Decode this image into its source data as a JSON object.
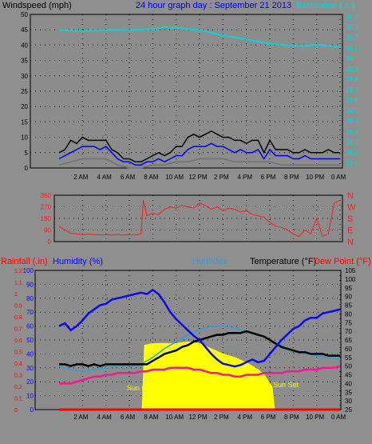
{
  "header": {
    "wind_label": "Windspeed (mph)",
    "title": "24 hour graph day : September 21 2013",
    "baro_label": "Barometer (.in)"
  },
  "mid_panel": {
    "compass_labels": [
      "N",
      "W",
      "S",
      "E",
      "N"
    ]
  },
  "lower_header": {
    "rain_label": "Rainfall (.in)",
    "humidity_label": "Humidity (%)",
    "humidex_label": "Humidex",
    "temperature_label": "Temperature (°F)",
    "dewpoint_label": "Dew Point (°F)"
  },
  "annotations": {
    "sun_rise": "Sun rise",
    "sun_set": "Sun Set"
  },
  "colors": {
    "background": "#8f8f8f",
    "plot_bg": "#8c8c8c",
    "wind_avg": "#0000ee",
    "wind_gust": "#000000",
    "wind_lull": "#707070",
    "barometer": "#00d8d8",
    "wind_dir": "#ff1a1a",
    "humidity": "#0a0aee",
    "humidex": "#2aa0d8",
    "temperature": "#000000",
    "dewpoint": "#ff1493",
    "rainfall": "#ff0000",
    "solar": "#ffff00"
  },
  "chart_data": [
    {
      "type": "line",
      "name_key": "wind_baro",
      "x_tick_labels": [
        "2 AM",
        "4 AM",
        "6 AM",
        "8 AM",
        "10 AM",
        "12 PM",
        "2 PM",
        "4 PM",
        "6 PM",
        "8 PM",
        "10 PM",
        "0 AM"
      ],
      "y_left_ticks": [
        0,
        5,
        10,
        15,
        20,
        25,
        30,
        35,
        40,
        45,
        50
      ],
      "y_left_range": [
        0,
        50
      ],
      "y_right_ticks": [
        "29.0",
        "29.1",
        "29.2",
        "29.3",
        "29.4",
        "29.5",
        "29.6",
        "29.7",
        "29.8",
        "29.9",
        "30",
        "30.1",
        "30.2",
        "30.3",
        "30.4"
      ],
      "y_right_range": [
        28.95,
        30.42
      ],
      "grid": true,
      "series": [
        {
          "key": "barometer",
          "axis": "right",
          "x": [
            0,
            2,
            4,
            6,
            8,
            9,
            10,
            12,
            14,
            16,
            17,
            18,
            19,
            20,
            21,
            22,
            23,
            24
          ],
          "values": [
            30.27,
            30.26,
            30.27,
            30.27,
            30.28,
            30.3,
            30.29,
            30.27,
            30.22,
            30.18,
            30.16,
            30.14,
            30.13,
            30.12,
            30.12,
            30.13,
            30.12,
            30.11
          ]
        },
        {
          "key": "wind_avg",
          "axis": "left",
          "x": [
            0,
            0.5,
            1,
            1.5,
            2,
            2.5,
            3,
            3.5,
            4,
            4.5,
            5,
            5.5,
            6,
            6.5,
            7,
            7.5,
            8,
            8.5,
            9,
            9.5,
            10,
            10.5,
            11,
            11.5,
            12,
            12.5,
            13,
            13.5,
            14,
            14.5,
            15,
            15.5,
            16,
            16.5,
            17,
            17.5,
            18,
            18.5,
            19,
            19.5,
            20,
            20.5,
            21,
            21.5,
            22,
            22.5,
            23,
            23.5,
            24
          ],
          "values": [
            3,
            4,
            5,
            6,
            7,
            7,
            7,
            6,
            7,
            5,
            3,
            2,
            2,
            1,
            1,
            2,
            2,
            3,
            2,
            3,
            4,
            4,
            6,
            7,
            7,
            7,
            8,
            7,
            7,
            6,
            5,
            6,
            5,
            5,
            6,
            3,
            6,
            4,
            4,
            4,
            3,
            3,
            4,
            3,
            3,
            3,
            3,
            3,
            3
          ]
        },
        {
          "key": "wind_gust",
          "axis": "left",
          "x": [
            0,
            0.5,
            1,
            1.5,
            2,
            2.5,
            3,
            3.5,
            4,
            4.5,
            5,
            5.5,
            6,
            6.5,
            7,
            7.5,
            8,
            8.5,
            9,
            9.5,
            10,
            10.5,
            11,
            11.5,
            12,
            12.5,
            13,
            13.5,
            14,
            14.5,
            15,
            15.5,
            16,
            16.5,
            17,
            17.5,
            18,
            18.5,
            19,
            19.5,
            20,
            20.5,
            21,
            21.5,
            22,
            22.5,
            23,
            23.5,
            24
          ],
          "values": [
            5,
            6,
            9,
            8,
            10,
            9,
            9,
            9,
            9,
            6,
            5,
            3,
            3,
            2,
            2,
            3,
            4,
            5,
            4,
            5,
            7,
            7,
            10,
            11,
            10,
            11,
            12,
            11,
            10,
            10,
            9,
            9,
            8,
            9,
            9,
            5,
            9,
            6,
            6,
            6,
            5,
            5,
            6,
            5,
            5,
            5,
            6,
            5,
            5
          ]
        },
        {
          "key": "wind_lull",
          "axis": "left",
          "x": [
            0,
            1,
            2,
            3,
            4,
            5,
            6,
            7,
            8,
            9,
            10,
            11,
            12,
            13,
            14,
            15,
            16,
            17,
            18,
            19,
            20,
            21,
            22,
            23,
            24
          ],
          "values": [
            1,
            2,
            3,
            3,
            3,
            1,
            0,
            0,
            1,
            1,
            2,
            2,
            3,
            3,
            3,
            2,
            2,
            2,
            2,
            1,
            1,
            1,
            1,
            1,
            1
          ]
        }
      ]
    },
    {
      "type": "line",
      "name_key": "wind_direction",
      "y_ticks": [
        0,
        90,
        180,
        270,
        360
      ],
      "y_range": [
        0,
        360
      ],
      "grid": true,
      "series": [
        {
          "key": "wind_dir",
          "x": [
            0,
            0.5,
            1,
            1.5,
            2,
            2.5,
            3,
            3.5,
            4,
            4.5,
            5,
            5.5,
            6,
            6.5,
            7,
            7.2,
            7.5,
            8,
            8.5,
            9,
            9.5,
            10,
            10.5,
            11,
            11.5,
            12,
            12.5,
            13,
            13.5,
            14,
            14.5,
            15,
            15.5,
            16,
            16.5,
            17,
            17.5,
            18,
            18.5,
            19,
            19.5,
            20,
            20.5,
            21,
            21.5,
            22,
            22.5,
            23,
            23.5,
            24
          ],
          "values": [
            120,
            90,
            65,
            60,
            55,
            58,
            55,
            52,
            55,
            50,
            55,
            50,
            55,
            50,
            60,
            320,
            200,
            220,
            210,
            250,
            270,
            260,
            280,
            270,
            260,
            300,
            280,
            250,
            270,
            240,
            260,
            250,
            230,
            240,
            210,
            200,
            190,
            150,
            120,
            110,
            90,
            60,
            40,
            90,
            60,
            180,
            40,
            60,
            300,
            320
          ]
        }
      ]
    },
    {
      "type": "line",
      "name_key": "temp_humidity",
      "y_rain_ticks": [
        0,
        0.1,
        0.2,
        0.3,
        0.4,
        0.5,
        0.6,
        0.7,
        0.8,
        0.9,
        1,
        1.1,
        1.2
      ],
      "y_rain_range": [
        0,
        1.2
      ],
      "y_humidity_ticks": [
        0,
        10,
        20,
        30,
        40,
        50,
        60,
        70,
        80,
        90,
        100
      ],
      "y_humidity_range": [
        0,
        100
      ],
      "y_temp_ticks": [
        25,
        30,
        35,
        40,
        45,
        50,
        55,
        60,
        65,
        70,
        75,
        80,
        85,
        90,
        95,
        100,
        105
      ],
      "y_temp_range": [
        25,
        105
      ],
      "grid": true,
      "series": [
        {
          "key": "solar",
          "kind": "area",
          "axis": "temp",
          "x": [
            7.1,
            7.3,
            8,
            9,
            10,
            11,
            12,
            13,
            14,
            15,
            16,
            17,
            17.5,
            18.2,
            18.4
          ],
          "values": [
            25,
            62,
            63,
            63,
            63,
            64,
            63,
            60,
            57,
            55,
            52,
            48,
            45,
            38,
            25
          ]
        },
        {
          "key": "humidity",
          "axis": "humidity",
          "x": [
            0,
            0.5,
            1,
            1.5,
            2,
            2.5,
            3,
            3.5,
            4,
            4.5,
            5,
            5.5,
            6,
            6.5,
            7,
            7.5,
            8,
            8.5,
            9,
            9.5,
            10,
            10.5,
            11,
            11.5,
            12,
            12.5,
            13,
            13.5,
            14,
            14.5,
            15,
            15.5,
            16,
            16.5,
            17,
            17.5,
            18,
            18.5,
            19,
            19.5,
            20,
            20.5,
            21,
            21.5,
            22,
            22.5,
            23,
            23.5,
            24
          ],
          "values": [
            60,
            62,
            57,
            60,
            64,
            69,
            72,
            75,
            76,
            79,
            80,
            81,
            82,
            83,
            84,
            83,
            86,
            83,
            77,
            70,
            65,
            61,
            57,
            53,
            50,
            45,
            40,
            36,
            33,
            32,
            31,
            32,
            34,
            36,
            34,
            35,
            40,
            45,
            50,
            54,
            58,
            60,
            64,
            66,
            66,
            69,
            70,
            71,
            72
          ]
        },
        {
          "key": "humidex",
          "axis": "temp",
          "x": [
            0,
            1,
            2,
            3,
            4,
            5,
            6,
            7,
            8,
            9,
            10,
            11,
            12,
            13,
            14,
            15,
            16,
            17,
            18,
            19,
            20,
            21,
            22,
            23,
            24
          ],
          "values": [
            50,
            48,
            47,
            48,
            49,
            50,
            50,
            51,
            55,
            60,
            64,
            68,
            71,
            73,
            73,
            72,
            70,
            68,
            65,
            62,
            59,
            57,
            56,
            55,
            54
          ]
        },
        {
          "key": "temperature",
          "axis": "temp",
          "x": [
            0,
            0.5,
            1,
            1.5,
            2,
            2.5,
            3,
            3.5,
            4,
            4.5,
            5,
            5.5,
            6,
            6.5,
            7,
            7.5,
            8,
            8.5,
            9,
            9.5,
            10,
            10.5,
            11,
            11.5,
            12,
            12.5,
            13,
            13.5,
            14,
            14.5,
            15,
            15.5,
            16,
            16.5,
            17,
            17.5,
            18,
            18.5,
            19,
            19.5,
            20,
            20.5,
            21,
            21.5,
            22,
            22.5,
            23,
            23.5,
            24
          ],
          "values": [
            51,
            51,
            50,
            51,
            51,
            50,
            51,
            50,
            51,
            51,
            51,
            51,
            51,
            51,
            51,
            51,
            53,
            55,
            57,
            58,
            59,
            61,
            62,
            64,
            65,
            66,
            67,
            68,
            68,
            69,
            69,
            69,
            70,
            69,
            68,
            67,
            65,
            63,
            61,
            60,
            59,
            58,
            58,
            57,
            57,
            57,
            56,
            56,
            56
          ]
        },
        {
          "key": "dewpoint",
          "axis": "temp",
          "x": [
            0,
            0.5,
            1,
            1.5,
            2,
            2.5,
            3,
            3.5,
            4,
            4.5,
            5,
            5.5,
            6,
            6.5,
            7,
            7.5,
            8,
            8.5,
            9,
            9.5,
            10,
            10.5,
            11,
            11.5,
            12,
            12.5,
            13,
            13.5,
            14,
            14.5,
            15,
            15.5,
            16,
            16.5,
            17,
            17.5,
            18,
            18.5,
            19,
            19.5,
            20,
            20.5,
            21,
            21.5,
            22,
            22.5,
            23,
            23.5,
            24
          ],
          "values": [
            40,
            40,
            40,
            41,
            42,
            43,
            44,
            44,
            45,
            45,
            46,
            46,
            46,
            46,
            47,
            47,
            48,
            48,
            48,
            49,
            49,
            49,
            49,
            48,
            48,
            47,
            46,
            46,
            45,
            45,
            44,
            44,
            45,
            45,
            45,
            46,
            46,
            46,
            46,
            47,
            47,
            47,
            48,
            48,
            48,
            49,
            49,
            49,
            50
          ]
        },
        {
          "key": "rainfall",
          "axis": "rain",
          "x": [
            0,
            24
          ],
          "values": [
            0,
            0
          ]
        }
      ]
    }
  ]
}
